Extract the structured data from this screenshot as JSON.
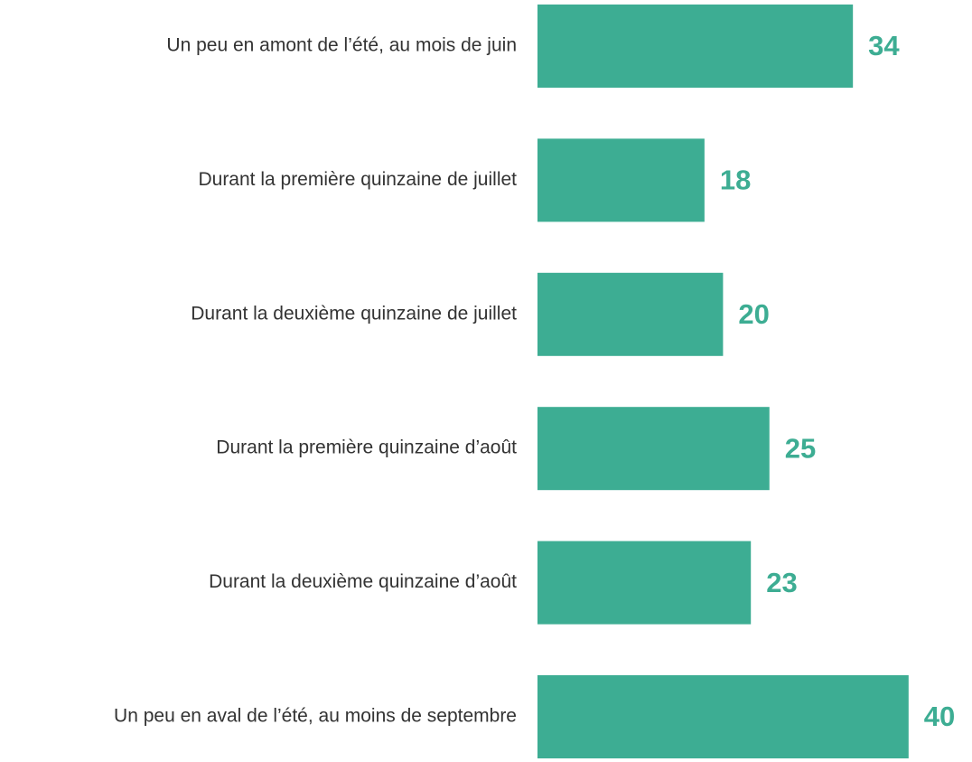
{
  "chart_data": {
    "type": "barh",
    "categories": [
      "Un peu en amont de l’été, au mois de juin",
      "Durant la première quinzaine de juillet",
      "Durant la deuxième quinzaine de juillet",
      "Durant la première quinzaine d’août",
      "Durant la deuxième quinzaine d’août",
      "Un peu en aval de l’été, au moins de septembre"
    ],
    "values": [
      34,
      18,
      20,
      25,
      23,
      40
    ],
    "color": "#3dad93"
  }
}
